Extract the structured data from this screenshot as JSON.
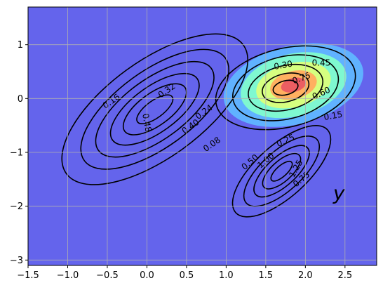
{
  "chart_data": {
    "type": "contour",
    "title": "",
    "xlabel": "",
    "ylabel": "",
    "xlim": [
      -1.5,
      2.9
    ],
    "ylim": [
      -3.1,
      1.7
    ],
    "xticks": [
      -1.5,
      -1.0,
      -0.5,
      0.0,
      0.5,
      1.0,
      1.5,
      2.0,
      2.5
    ],
    "yticks": [
      -3,
      -2,
      -1,
      0,
      1
    ],
    "xtick_labels": [
      "−1.5",
      "−1.0",
      "−0.5",
      "0.0",
      "0.5",
      "1.0",
      "1.5",
      "2.0",
      "2.5"
    ],
    "ytick_labels": [
      "−3",
      "−2",
      "−1",
      "0",
      "1"
    ],
    "grid": true,
    "background_color": "#6464ec",
    "filled_contour": {
      "center": [
        1.85,
        0.25
      ],
      "levels": [
        0.15,
        0.3,
        0.45,
        0.6,
        0.75
      ],
      "band_colors": [
        "#60b2ff",
        "#7ff8d0",
        "#d6ff80",
        "#ffb060",
        "#ec5e62"
      ]
    },
    "line_contour_sets": [
      {
        "center": [
          0.1,
          -0.2
        ],
        "levels": [
          0.08,
          0.16,
          0.24,
          0.32,
          0.4,
          0.48
        ],
        "labels": [
          "0.08",
          "0.16",
          "0.24",
          "0.32",
          "0.40",
          "0.48"
        ]
      },
      {
        "center": [
          1.75,
          0.2
        ],
        "levels": [
          0.15,
          0.3,
          0.45,
          0.6,
          0.75
        ],
        "labels": [
          "0.15",
          "0.30",
          "0.45",
          "0.60",
          "0.75"
        ]
      },
      {
        "center": [
          1.7,
          -1.35
        ],
        "levels": [
          0.25,
          0.5,
          0.75,
          1.0,
          1.25
        ],
        "labels": [
          "0.25",
          "0.50",
          "0.75",
          "1.00",
          "1.25"
        ]
      }
    ],
    "annotations": [
      {
        "text": "y",
        "x": 2.35,
        "y": -1.88
      }
    ]
  }
}
